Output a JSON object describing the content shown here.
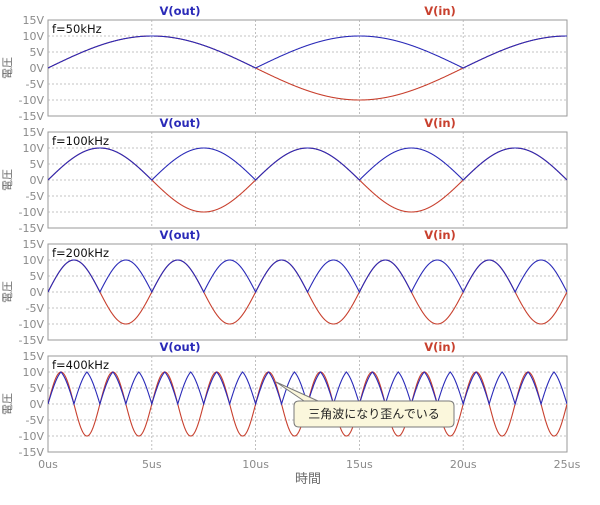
{
  "colors": {
    "vout": "#2a2ab8",
    "vin": "#c8402e",
    "grid": "#b0b0b0",
    "frame": "#9a9a9a",
    "tick": "#8a8a8a",
    "callout_fill": "#fbf7dc",
    "callout_border": "#7a7a7a"
  },
  "chart_data": {
    "type": "line",
    "xlabel": "時間",
    "ylabel": "電圧",
    "xlim": [
      0,
      25
    ],
    "x_unit": "us",
    "ylim": [
      -15,
      15
    ],
    "x_ticks": [
      "0us",
      "5us",
      "10us",
      "15us",
      "20us",
      "25us"
    ],
    "y_ticks": [
      "15V",
      "10V",
      "5V",
      "0V",
      "-5V",
      "-10V",
      "-15V"
    ],
    "series_names": [
      "V(out)",
      "V(in)"
    ],
    "amplitude_v": 10,
    "annotation": "三角波になり歪んでいる",
    "panels": [
      {
        "label": "f=50kHz",
        "freq_khz": 50
      },
      {
        "label": "f=100kHz",
        "freq_khz": 100
      },
      {
        "label": "f=200kHz",
        "freq_khz": 200
      },
      {
        "label": "f=400kHz",
        "freq_khz": 400
      }
    ]
  }
}
